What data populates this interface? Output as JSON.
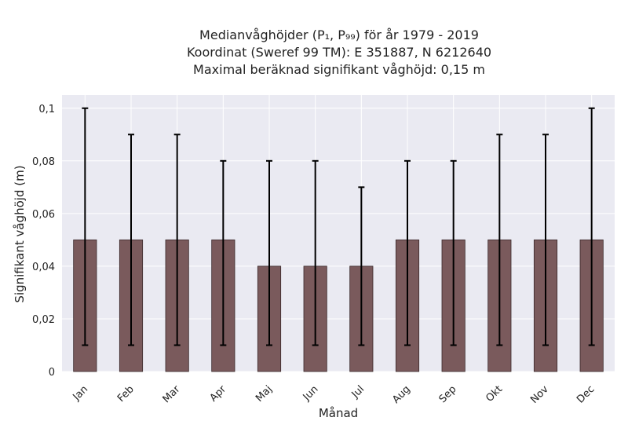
{
  "chart_data": {
    "type": "bar",
    "title_lines": [
      "Medianvåghöjder (P₁, P₉₉) för år 1979 - 2019",
      "Koordinat (Sweref 99 TM): E 351887, N 6212640",
      "Maximal beräknad signifikant våghöjd: 0,15 m"
    ],
    "xlabel": "Månad",
    "ylabel": "Signifikant våghöjd (m)",
    "categories": [
      "Jan",
      "Feb",
      "Mar",
      "Apr",
      "Maj",
      "Jun",
      "Jul",
      "Aug",
      "Sep",
      "Okt",
      "Nov",
      "Dec"
    ],
    "values": [
      0.05,
      0.05,
      0.05,
      0.05,
      0.04,
      0.04,
      0.04,
      0.05,
      0.05,
      0.05,
      0.05,
      0.05
    ],
    "error_low": [
      0.01,
      0.01,
      0.01,
      0.01,
      0.01,
      0.01,
      0.01,
      0.01,
      0.01,
      0.01,
      0.01,
      0.01
    ],
    "error_high": [
      0.1,
      0.09,
      0.09,
      0.08,
      0.08,
      0.08,
      0.07,
      0.08,
      0.08,
      0.09,
      0.09,
      0.1
    ],
    "ylim": [
      0,
      0.105
    ],
    "yticks": [
      0,
      0.02,
      0.04,
      0.06,
      0.08,
      0.1
    ],
    "ytick_labels": [
      "0",
      "0,02",
      "0,04",
      "0,06",
      "0,08",
      "0,1"
    ],
    "grid": true,
    "colors": {
      "bar": "#7a5a5c",
      "bar_edge": "#3a2a2b",
      "errorbar": "#000000",
      "background": "#eaeaf2",
      "grid": "#ffffff"
    }
  }
}
